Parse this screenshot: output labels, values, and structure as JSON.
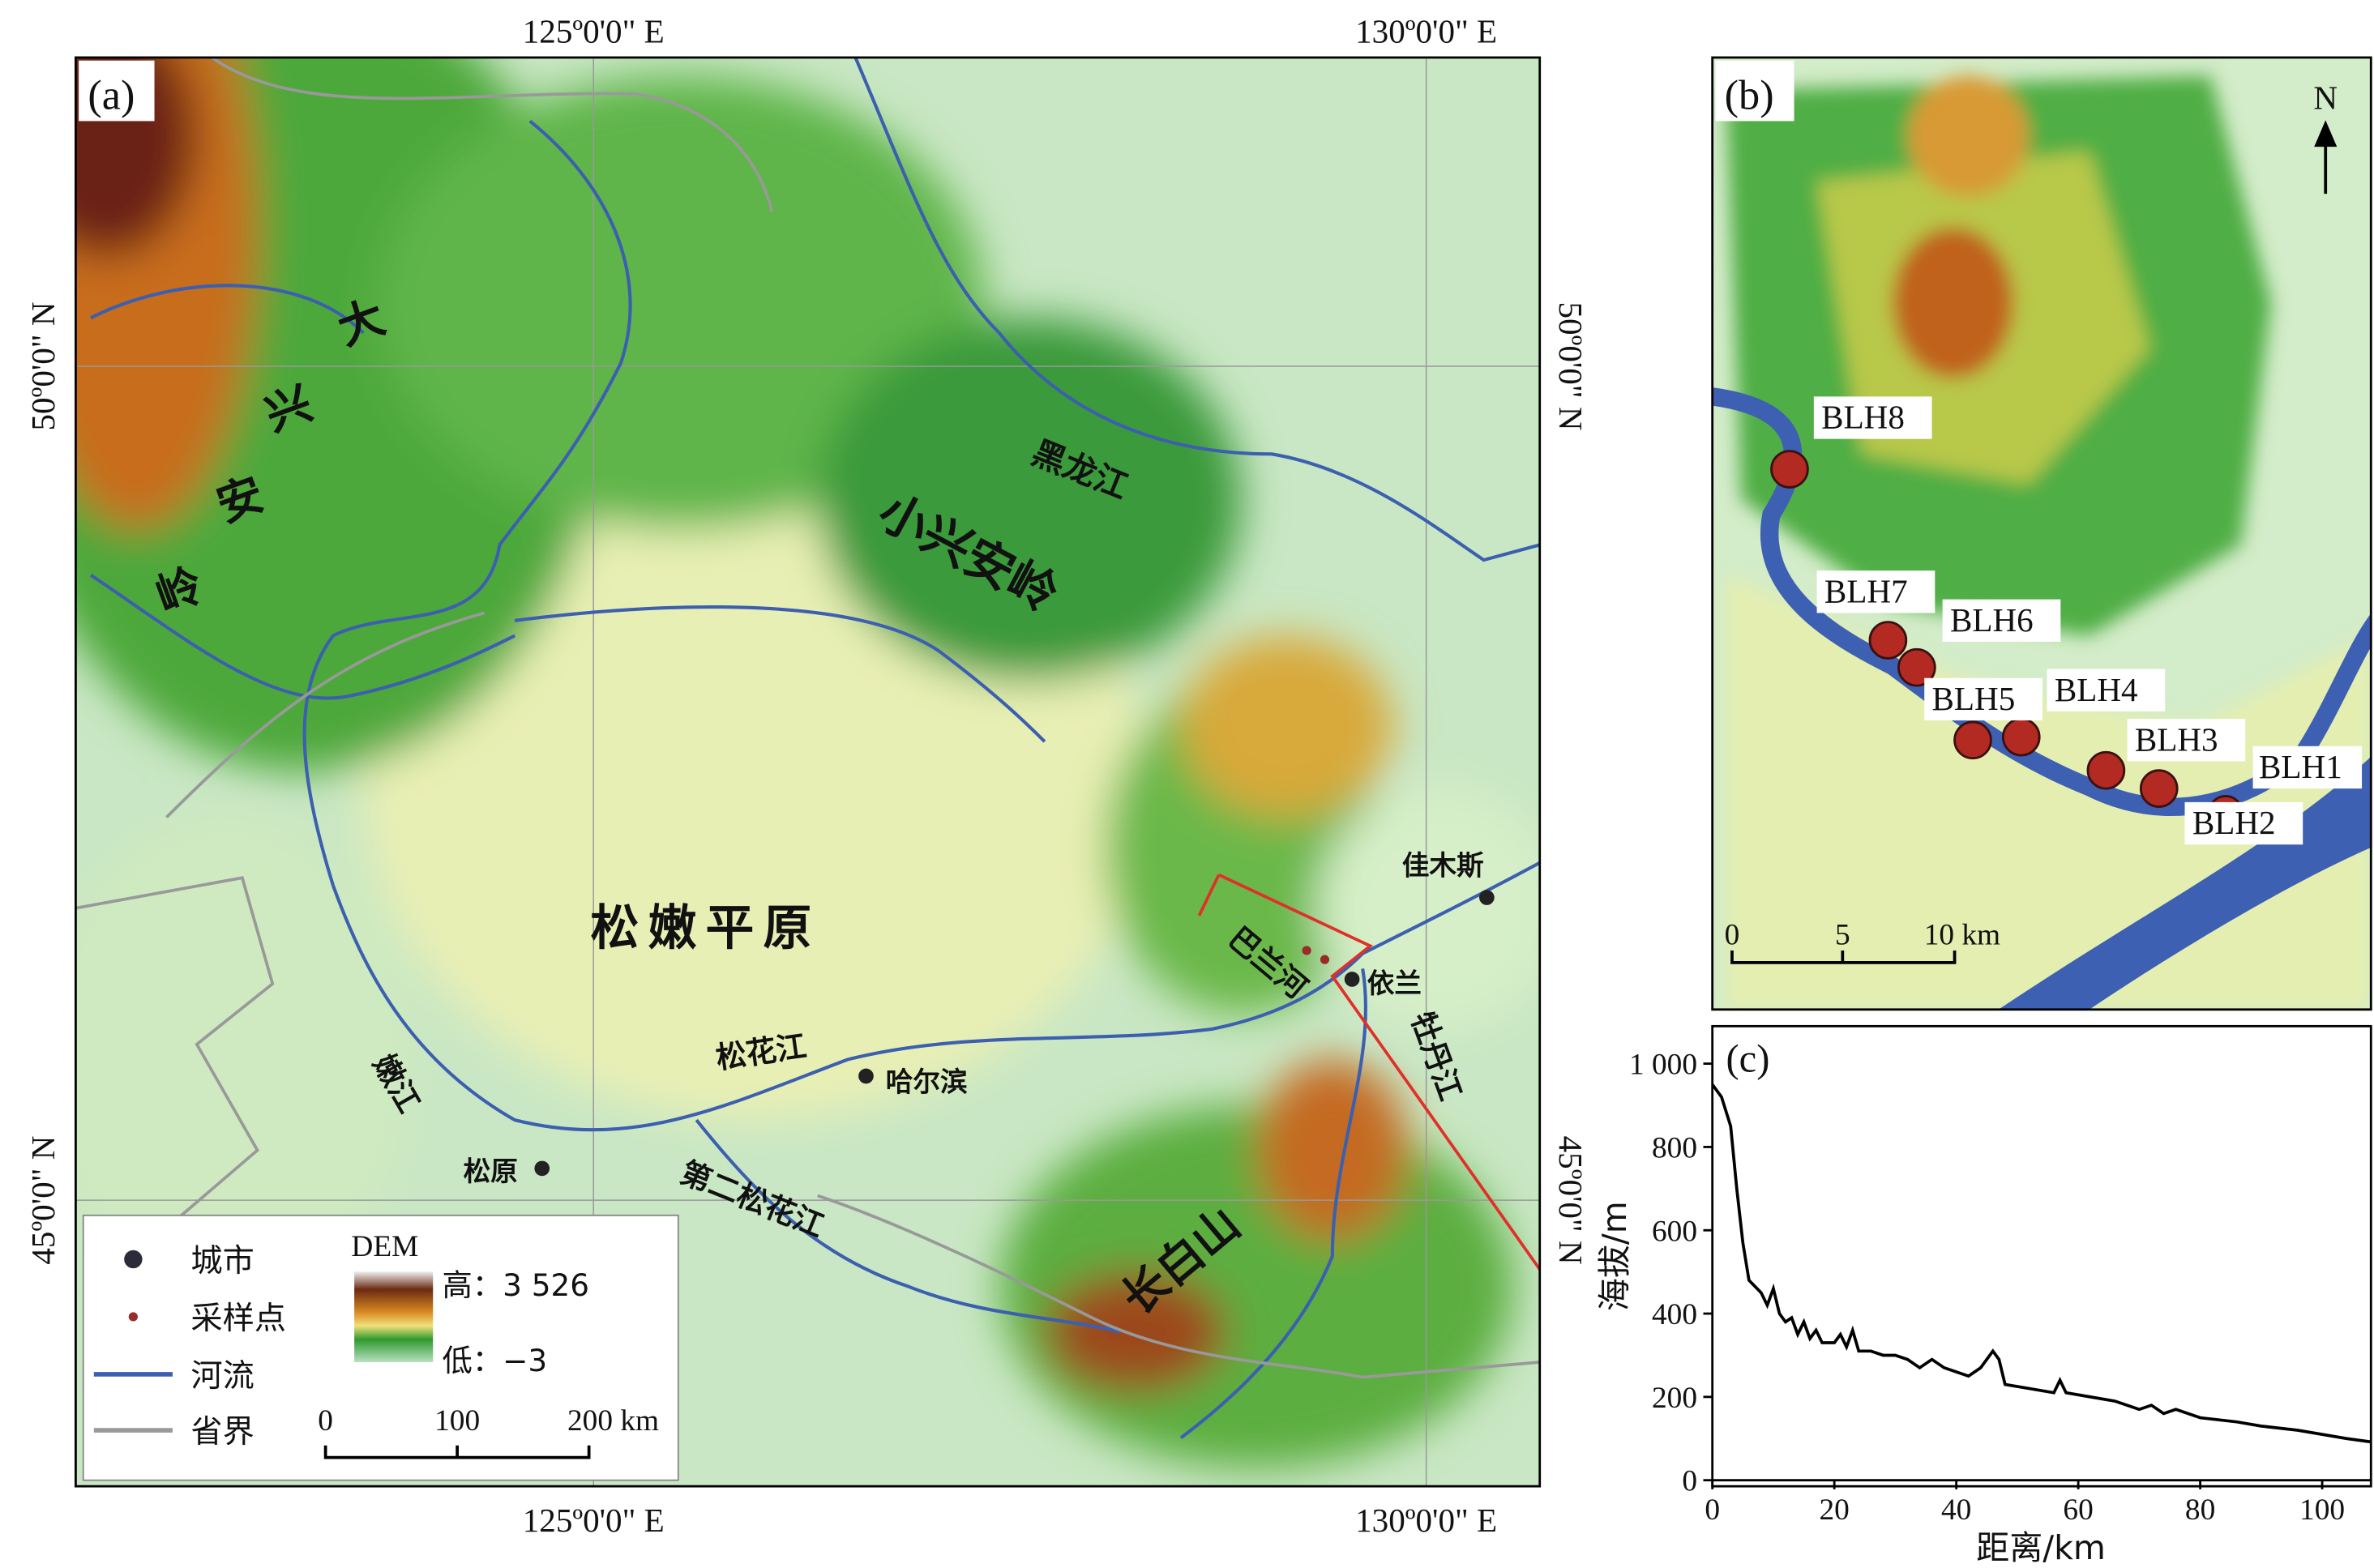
{
  "panel_a": {
    "label": "(a)",
    "lon_labels": [
      "125º0'0\" E",
      "130º0'0\" E"
    ],
    "lat_labels": [
      "50º0'0\" N",
      "45º0'0\" N"
    ],
    "da_xing_an_ling": [
      "大",
      "兴",
      "安",
      "岭"
    ],
    "xiao_xing_an_ling": "小兴安岭",
    "heilongjiang": "黑龙江",
    "songnen_plain": "松嫩平原",
    "songhuajiang": "松花江",
    "nenjiang": "嫩江",
    "second_songhuajiang": "第二松花江",
    "changbaishan": "长白山",
    "mudanjiang": "牡丹江",
    "balanhe": "巴兰河",
    "cities": [
      "哈尔滨",
      "松原",
      "依兰",
      "佳木斯"
    ],
    "legend": {
      "city": "城市",
      "sample": "采样点",
      "river": "河流",
      "boundary": "省界",
      "dem": "DEM",
      "high": "高：3 526",
      "low": "低：−3"
    },
    "scale": [
      "0",
      "100",
      "200 km"
    ]
  },
  "panel_b": {
    "label": "(b)",
    "north": "N",
    "sites": [
      "BLH1",
      "BLH2",
      "BLH3",
      "BLH4",
      "BLH5",
      "BLH6",
      "BLH7",
      "BLH8"
    ],
    "scale": [
      "0",
      "5",
      "10 km"
    ]
  },
  "chart_data": {
    "type": "line",
    "label": "(c)",
    "x_label": "距离/km",
    "y_label": "海拔/m",
    "color": "#000000",
    "x": [
      0,
      1.5,
      3,
      4,
      5,
      6,
      8,
      9,
      10,
      11,
      12,
      13,
      14,
      15,
      16,
      17,
      18,
      20,
      21,
      22,
      23,
      24,
      26,
      28,
      30,
      32,
      34,
      36,
      38,
      40,
      42,
      44,
      46,
      47,
      48,
      52,
      56,
      57,
      58,
      62,
      66,
      68,
      70,
      72,
      74,
      76,
      80,
      86,
      90,
      96,
      100,
      104,
      108
    ],
    "values": [
      950,
      920,
      850,
      700,
      570,
      480,
      450,
      420,
      460,
      400,
      380,
      390,
      350,
      380,
      340,
      360,
      330,
      330,
      350,
      320,
      360,
      310,
      310,
      300,
      300,
      290,
      270,
      290,
      270,
      260,
      250,
      270,
      310,
      290,
      230,
      220,
      210,
      240,
      210,
      200,
      190,
      180,
      170,
      180,
      160,
      170,
      150,
      140,
      130,
      120,
      110,
      100,
      92
    ],
    "xlim": [
      0,
      108
    ],
    "ylim": [
      0,
      1090
    ],
    "xticks": [
      0,
      20,
      40,
      60,
      80,
      100
    ],
    "yticks": [
      0,
      200,
      400,
      600,
      800,
      {
        "value": 1000,
        "label": "1 000"
      }
    ]
  }
}
